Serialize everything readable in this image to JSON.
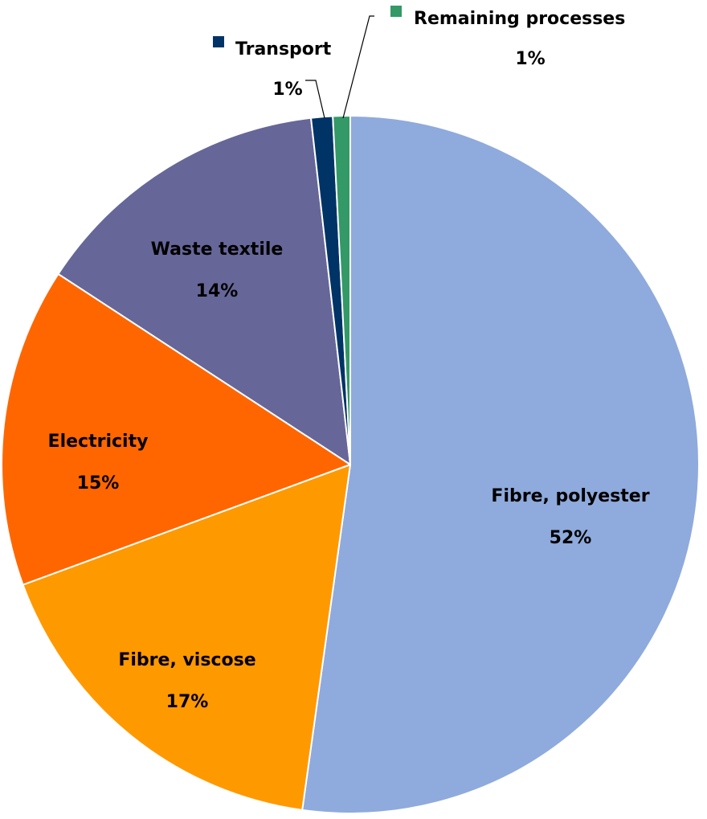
{
  "chart_data": {
    "type": "pie",
    "slices": [
      {
        "label": "Fibre, polyester",
        "value": 52.2,
        "value_label": "52%",
        "color": "#8faadc"
      },
      {
        "label": "Fibre, viscose",
        "value": 17.2,
        "value_label": "17%",
        "color": "#ff9900"
      },
      {
        "label": "Electricity",
        "value": 14.8,
        "value_label": "15%",
        "color": "#ff6600"
      },
      {
        "label": "Waste textile",
        "value": 14.0,
        "value_label": "14%",
        "color": "#666699"
      },
      {
        "label": "Transport",
        "value": 1.0,
        "value_label": "1%",
        "color": "#003366"
      },
      {
        "label": "Remaining processes",
        "value": 0.8,
        "value_label": "1%",
        "color": "#339966"
      }
    ]
  }
}
